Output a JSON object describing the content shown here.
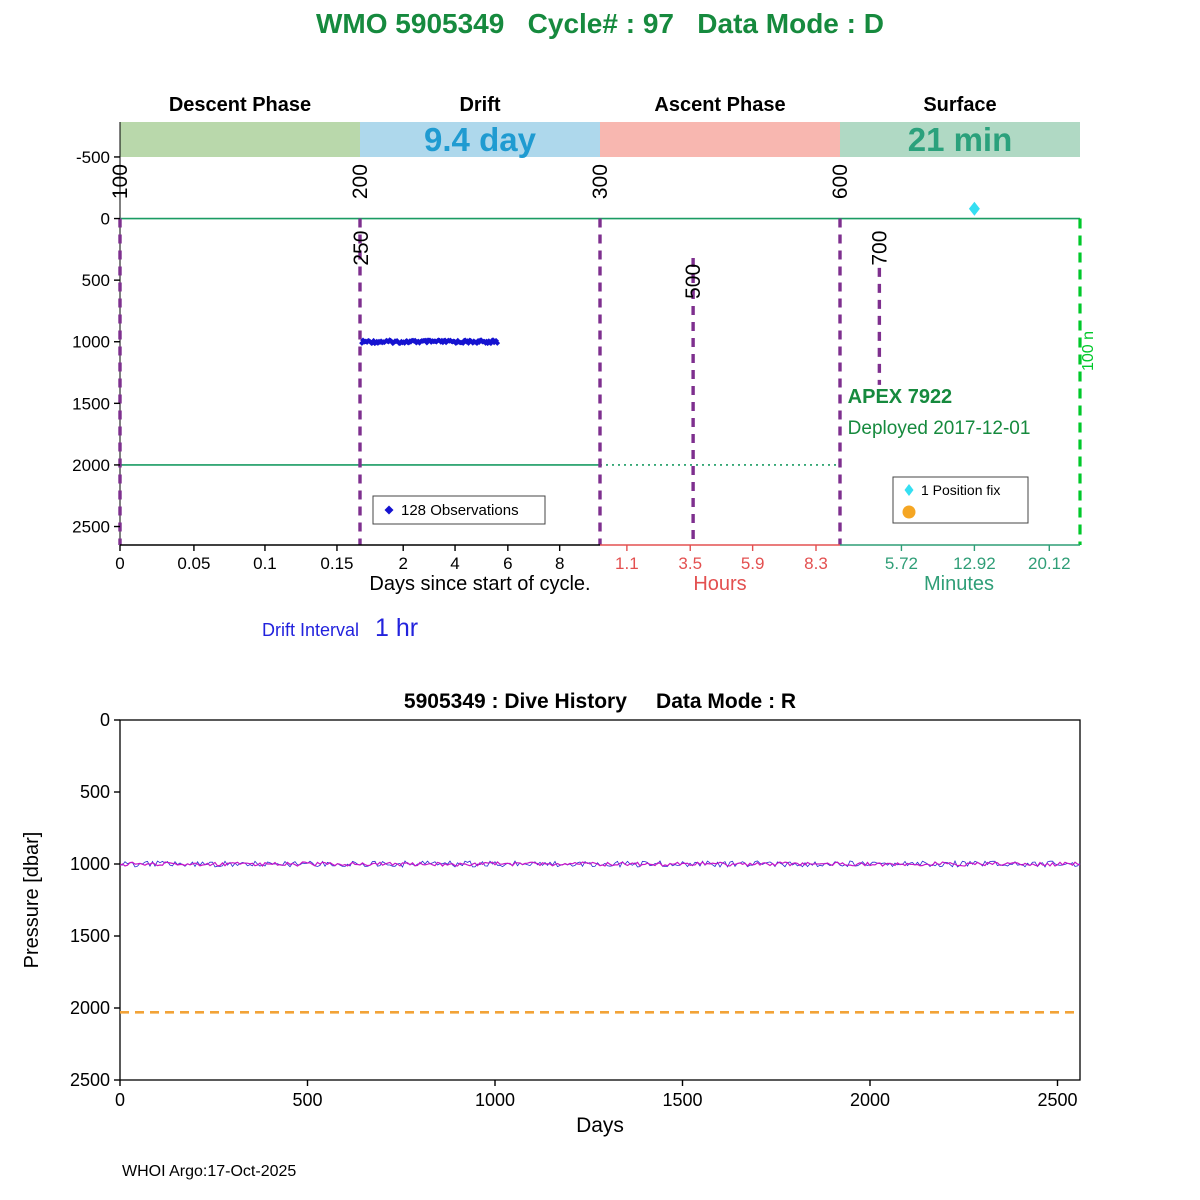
{
  "page": {
    "title": "WMO 5905349   Cycle# : 97   Data Mode : D",
    "title_color": "#168a3e",
    "footer": "WHOI Argo:17-Oct-2025"
  },
  "chart_data": [
    {
      "id": "cycle-timing",
      "type": "scatter",
      "description": "Argo float cycle timing diagram: pressure (dbar) vs multi-scale time axis (days / hours / minutes)",
      "phases": [
        {
          "label": "Descent Phase",
          "duration": "",
          "band_color": "#b9d8ab",
          "duration_color": ""
        },
        {
          "label": "Drift",
          "duration": "9.4 day",
          "band_color": "#aed8ec",
          "duration_color": "#1f9bd1"
        },
        {
          "label": "Ascent Phase",
          "duration": "",
          "band_color": "#f8b7b0",
          "duration_color": ""
        },
        {
          "label": "Surface",
          "duration": "21 min",
          "band_color": "#b0d9c4",
          "duration_color": "#2ba17c"
        }
      ],
      "y_ticks": [
        "-500",
        "0",
        "500",
        "1000",
        "1500",
        "2000",
        "2500"
      ],
      "ylim": [
        -800,
        2650
      ],
      "x_segments": [
        {
          "label": "Days since start of cycle.",
          "color": "#000000",
          "span": [
            0.0,
            0.5
          ],
          "label_f": 0.375,
          "ticks": [
            {
              "v": "0",
              "f": 0.0
            },
            {
              "v": "0.05",
              "f": 0.077
            },
            {
              "v": "0.1",
              "f": 0.151
            },
            {
              "v": "0.15",
              "f": 0.226
            },
            {
              "v": "2",
              "f": 0.295
            },
            {
              "v": "4",
              "f": 0.349
            },
            {
              "v": "6",
              "f": 0.404
            },
            {
              "v": "8",
              "f": 0.458
            }
          ]
        },
        {
          "label": "Hours",
          "color": "#e35050",
          "span": [
            0.5,
            0.75
          ],
          "label_f": 0.625,
          "ticks": [
            {
              "v": "1.1",
              "f": 0.528
            },
            {
              "v": "3.5",
              "f": 0.594
            },
            {
              "v": "5.9",
              "f": 0.659
            },
            {
              "v": "8.3",
              "f": 0.725
            }
          ]
        },
        {
          "label": "Minutes",
          "color": "#2f9e77",
          "span": [
            0.75,
            1.0
          ],
          "label_f": 0.874,
          "ticks": [
            {
              "v": "5.72",
              "f": 0.814
            },
            {
              "v": "12.92",
              "f": 0.89
            },
            {
              "v": "20.12",
              "f": 0.968
            }
          ]
        }
      ],
      "event_line_color": "#7E2F8E",
      "event_lines": [
        {
          "label": "100",
          "f": 0.0,
          "p1": 0,
          "p2": 2650,
          "label_p": -300
        },
        {
          "label": "200",
          "f": 0.25,
          "p1": 0,
          "p2": 2650,
          "label_p": -300
        },
        {
          "label": "250",
          "f": 0.251,
          "p1": null,
          "p2": null,
          "label_p": 240
        },
        {
          "label": "300",
          "f": 0.5,
          "p1": 0,
          "p2": 2650,
          "label_p": -300
        },
        {
          "label": "500",
          "f": 0.597,
          "p1": 320,
          "p2": 2650,
          "label_p": 510
        },
        {
          "label": "600",
          "f": 0.75,
          "p1": 0,
          "p2": 2650,
          "label_p": -300
        },
        {
          "label": "700",
          "f": 0.791,
          "p1": 400,
          "p2": 1350,
          "label_p": 240
        }
      ],
      "reference_lines": [
        {
          "name": "surface-pressure-line",
          "p": 0,
          "f1": 0.0,
          "f2": 1.0,
          "dash": "",
          "color": "#1a9b63"
        },
        {
          "name": "park-pressure-line",
          "p": 2000,
          "f1": 0.0,
          "f2": 0.5,
          "dash": "",
          "color": "#1a9b63"
        },
        {
          "name": "park-pressure-line-dotted",
          "p": 2000,
          "f1": 0.5,
          "f2": 0.75,
          "dash": "2 4",
          "color": "#1a9b63"
        }
      ],
      "surface_marker_line": {
        "label": "100 n",
        "f": 1.0,
        "p1": 0,
        "p2": 2650,
        "label_p": 1075,
        "color": "#00c82a"
      },
      "observations": {
        "legend_label": "128 Observations",
        "count": 128,
        "pressure_dbar": 1000,
        "f_start": 0.252,
        "f_end": 0.393,
        "color": "#1512d0"
      },
      "position_fix": {
        "legend_label": "1 Position fix",
        "f": 0.89,
        "pressure_dbar": -80,
        "color": "#35dff2"
      },
      "park_marker": {
        "legend_label": "",
        "color": "#f5a623"
      },
      "float_info": {
        "color": "#168a3e",
        "lines": [
          {
            "text": "APEX 7922",
            "f": 0.758,
            "p": 1450,
            "bold": true
          },
          {
            "text": "Deployed 2017-12-01",
            "f": 0.758,
            "p": 1700,
            "bold": false
          }
        ]
      },
      "drift_interval": {
        "label": "Drift Interval",
        "value": "1 hr",
        "color": "#2222dd"
      }
    },
    {
      "id": "dive-history",
      "type": "line",
      "title": "5905349 : Dive History     Data Mode : R",
      "xlabel": "Days",
      "ylabel": "Pressure [dbar]",
      "x_ticks": [
        "0",
        "500",
        "1000",
        "1500",
        "2000",
        "2500"
      ],
      "xlim": [
        0,
        2560
      ],
      "y_ticks": [
        "0",
        "500",
        "1000",
        "1500",
        "2000",
        "2500"
      ],
      "ylim": [
        0,
        2500
      ],
      "grid": false,
      "series": [
        {
          "name": "drift-pressure-history",
          "value_dbar": 1000,
          "style": "noisy",
          "color": "#c715c7",
          "noise_color": "#2a2ad0"
        },
        {
          "name": "park-pressure-history",
          "value_dbar": 2030,
          "style": "dashed",
          "color": "#f2a338"
        }
      ]
    }
  ]
}
